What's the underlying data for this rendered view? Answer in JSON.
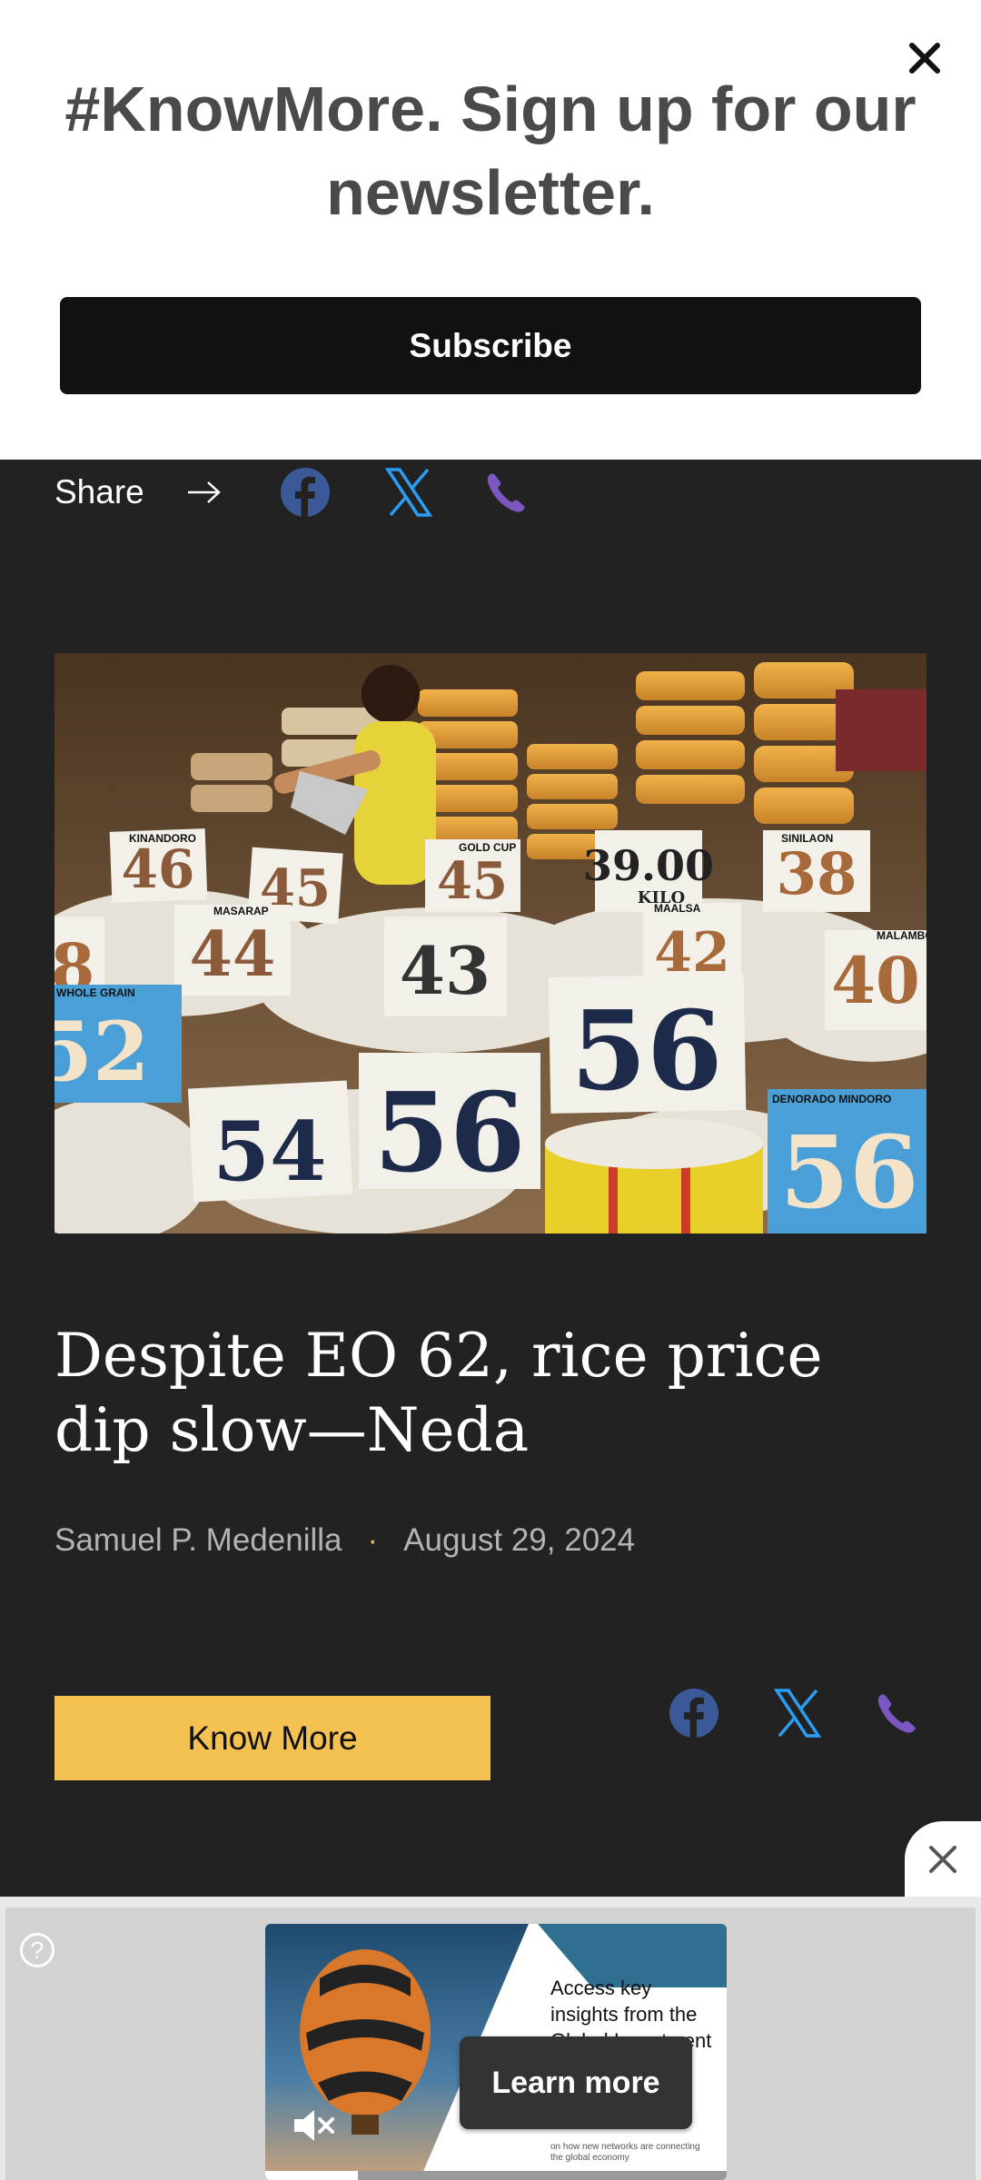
{
  "newsletter": {
    "title": "#KnowMore. Sign up for our newsletter.",
    "subscribe_label": "Subscribe"
  },
  "share": {
    "label": "Share",
    "icons": [
      "facebook-icon",
      "x-icon",
      "viber-icon"
    ]
  },
  "article": {
    "headline": "Despite EO 62, rice price dip slow—Neda",
    "author": "Samuel P. Medenilla",
    "separator": "·",
    "date": "August 29, 2024",
    "know_more_label": "Know More",
    "image_signs": {
      "s1": "46",
      "s2": "45",
      "s3": "45",
      "s4": "39.00",
      "s5": "38",
      "s6": "44",
      "s7": "43",
      "s8": "42",
      "s9": "40",
      "s10": "52",
      "s11": "56",
      "s12": "54",
      "s13": "56",
      "s14": "56",
      "s15": "8",
      "s16": "KILO",
      "labels": {
        "whole_grain": "WHOLE GRAIN",
        "denorado": "DENORADO MINDORO",
        "malambo": "MALAMBO",
        "maalsa": "MAALSA",
        "masarap": "MASARAP",
        "kinandoro": "KINANDORO",
        "gold_cup": "GOLD CUP",
        "sinilaon": "SINILAON"
      }
    }
  },
  "ad": {
    "help": "?",
    "text": "Access key insights from the Global Investment",
    "text_small": "on how new networks are connecting the global economy",
    "learn_more": "Learn more",
    "progress": 0.2
  },
  "colors": {
    "page_bg": "#222222",
    "accent": "#f5c150",
    "facebook": "#3b5998",
    "x": "#1da1f2",
    "viber": "#7d57c1"
  }
}
